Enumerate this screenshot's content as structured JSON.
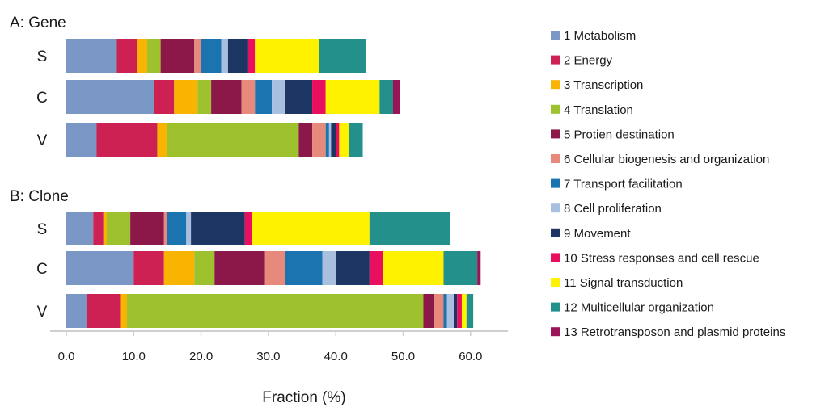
{
  "chart_data": {
    "type": "bar",
    "stacked": true,
    "orientation": "horizontal",
    "xlabel": "Fraction (%)",
    "xlim": [
      0,
      65
    ],
    "xticks": [
      "0.0",
      "10.0",
      "20.0",
      "30.0",
      "40.0",
      "50.0",
      "60.0"
    ],
    "grid": false,
    "legend_position": "right",
    "categories": [
      {
        "name": "1 Metabolism",
        "color": "#7b97c6"
      },
      {
        "name": "2 Energy",
        "color": "#cc2152"
      },
      {
        "name": "3 Transcription",
        "color": "#f8b400"
      },
      {
        "name": "4 Translation",
        "color": "#9ec22e"
      },
      {
        "name": "5 Protien destination",
        "color": "#8b1848"
      },
      {
        "name": "6 Cellular biogenesis and organization",
        "color": "#e78a7c"
      },
      {
        "name": "7 Transport facilitation",
        "color": "#1b73b0"
      },
      {
        "name": "8 Cell proliferation",
        "color": "#a9bfe0"
      },
      {
        "name": "9 Movement",
        "color": "#1d3563"
      },
      {
        "name": "10 Stress responses and cell rescue",
        "color": "#e8105e"
      },
      {
        "name": "11 Signal transduction",
        "color": "#fff200"
      },
      {
        "name": "12 Multicellular organization",
        "color": "#24908c"
      },
      {
        "name": "13 Retrotransposon and plasmid proteins",
        "color": "#9b1458"
      }
    ],
    "panels": [
      {
        "title": "A: Gene",
        "rows": [
          {
            "label": "S",
            "values": [
              7.5,
              3.0,
              1.5,
              2.0,
              5.0,
              1.0,
              3.0,
              1.0,
              3.0,
              1.0,
              9.5,
              7.0,
              0
            ]
          },
          {
            "label": "C",
            "values": [
              13.0,
              3.0,
              3.5,
              2.0,
              4.5,
              2.0,
              2.5,
              2.0,
              4.0,
              2.0,
              8.0,
              2.0,
              1.0
            ]
          },
          {
            "label": "V",
            "values": [
              4.5,
              9.0,
              1.5,
              19.5,
              2.0,
              2.0,
              0.5,
              0.3,
              0.7,
              0.5,
              1.5,
              2.0,
              0
            ]
          }
        ]
      },
      {
        "title": "B: Clone",
        "rows": [
          {
            "label": "S",
            "values": [
              4.0,
              1.5,
              0.5,
              3.5,
              5.0,
              0.5,
              2.8,
              0.7,
              8.0,
              1.0,
              17.5,
              12.0,
              0
            ]
          },
          {
            "label": "C",
            "values": [
              10.0,
              4.5,
              4.5,
              3.0,
              7.5,
              3.0,
              5.5,
              2.0,
              5.0,
              2.0,
              9.0,
              5.0,
              0.5
            ]
          },
          {
            "label": "V",
            "values": [
              3.0,
              5.0,
              1.0,
              44.0,
              1.5,
              1.5,
              0.5,
              1.0,
              0.5,
              0.7,
              0.7,
              1.0,
              0
            ]
          }
        ]
      }
    ]
  }
}
